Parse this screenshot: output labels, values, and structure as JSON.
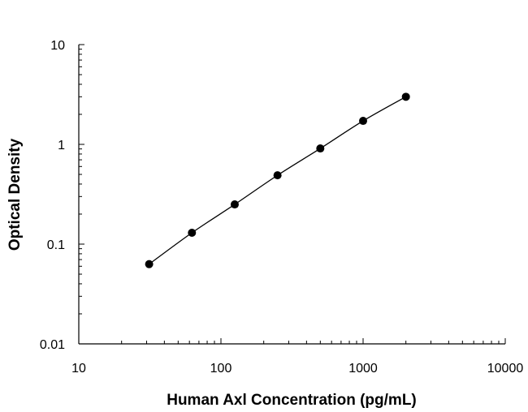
{
  "chart_data": {
    "type": "scatter",
    "title": "",
    "xlabel": "Human Axl Concentration (pg/mL)",
    "ylabel": "Optical Density",
    "x_scale": "log",
    "y_scale": "log",
    "xlim": [
      10,
      10000
    ],
    "ylim": [
      0.01,
      10
    ],
    "x_tick_labels": [
      "10",
      "100",
      "1000",
      "10000"
    ],
    "y_tick_labels": [
      "0.01",
      "0.1",
      "1",
      "10"
    ],
    "grid": false,
    "legend": "none",
    "series": [
      {
        "x": [
          31.25,
          62.5,
          125,
          250,
          500,
          1000,
          2000
        ],
        "y": [
          0.063,
          0.13,
          0.25,
          0.49,
          0.91,
          1.72,
          3.0
        ],
        "marker_color": "#000000",
        "fit_line": true
      }
    ]
  }
}
